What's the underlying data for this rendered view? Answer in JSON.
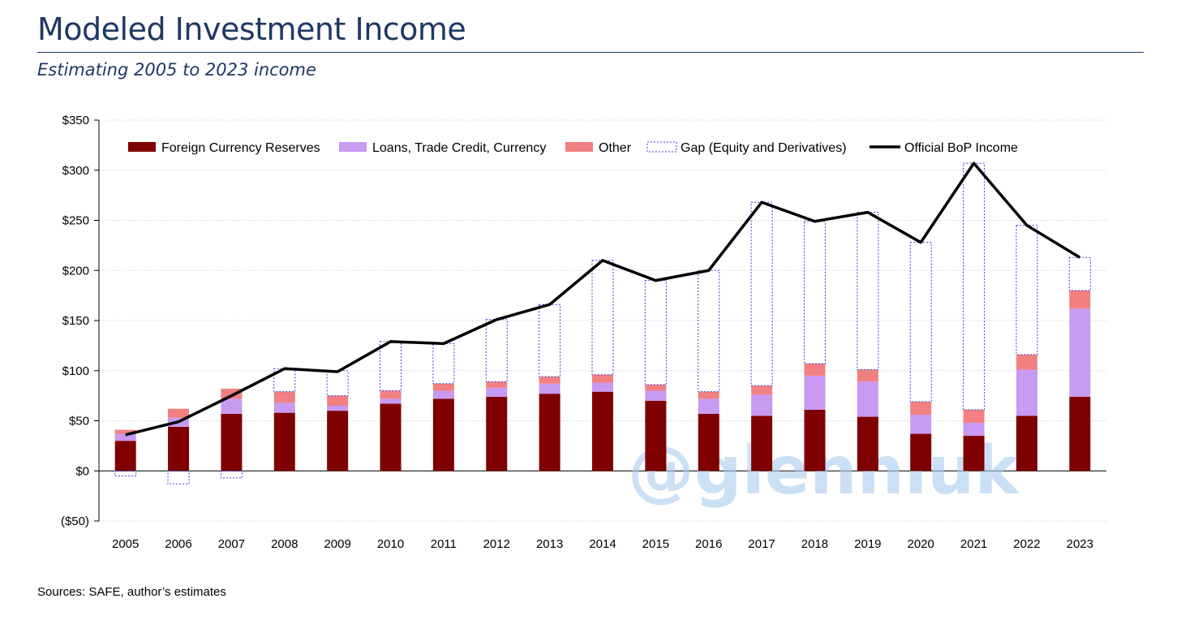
{
  "header": {
    "title": "Modeled Investment Income",
    "subtitle": "Estimating 2005 to 2023 income"
  },
  "footer": {
    "source": "Sources: SAFE, author’s estimates"
  },
  "watermark": "@glennluk",
  "colors": {
    "reserves": "#7f0000",
    "loans": "#c89af2",
    "other": "#f28080",
    "gap_border": "#3d3dcc",
    "official": "#000000",
    "title": "#1f3864"
  },
  "chart_data": {
    "type": "bar",
    "stacked": true,
    "categories": [
      "2005",
      "2006",
      "2007",
      "2008",
      "2009",
      "2010",
      "2011",
      "2012",
      "2013",
      "2014",
      "2015",
      "2016",
      "2017",
      "2018",
      "2019",
      "2020",
      "2021",
      "2022",
      "2023"
    ],
    "series": [
      {
        "name": "Foreign Currency Reserves",
        "type": "bar",
        "values": [
          30,
          44,
          57,
          58,
          60,
          67,
          72,
          74,
          77,
          79,
          70,
          57,
          55,
          61,
          54,
          37,
          35,
          55,
          74
        ]
      },
      {
        "name": "Loans, Trade Credit, Currency",
        "type": "bar",
        "values": [
          7,
          9,
          15,
          10,
          5,
          5,
          8,
          9,
          10,
          9,
          10,
          15,
          21,
          34,
          35,
          19,
          13,
          46,
          88
        ]
      },
      {
        "name": "Other",
        "type": "bar",
        "values": [
          4,
          9,
          10,
          11,
          10,
          8,
          7,
          6,
          7,
          8,
          6,
          7,
          9,
          12,
          12,
          13,
          13,
          15,
          18
        ]
      },
      {
        "name": "Gap (Equity and Derivatives)",
        "type": "bar",
        "values": [
          -5,
          -13,
          -7,
          23,
          25,
          49,
          40,
          62,
          72,
          114,
          104,
          121,
          183,
          142,
          157,
          159,
          246,
          129,
          33
        ]
      },
      {
        "name": "Official BoP Income",
        "type": "line",
        "values": [
          36,
          49,
          75,
          102,
          99,
          129,
          127,
          151,
          166,
          210,
          190,
          200,
          268,
          249,
          258,
          228,
          307,
          245,
          213
        ]
      }
    ],
    "ylim": [
      -50,
      350
    ],
    "yticks": [
      -50,
      0,
      50,
      100,
      150,
      200,
      250,
      300,
      350
    ],
    "ytick_labels": [
      "($50)",
      "$0",
      "$50",
      "$100",
      "$150",
      "$200",
      "$250",
      "$300",
      "$350"
    ],
    "grid": true,
    "legend_position": "top"
  }
}
